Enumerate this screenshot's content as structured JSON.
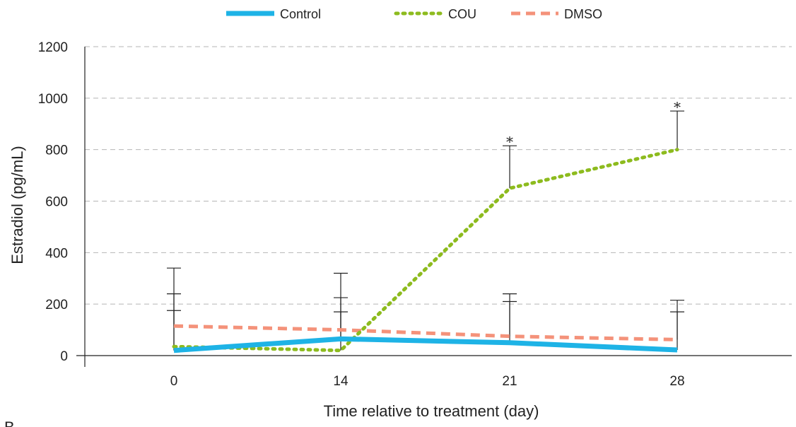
{
  "chart_data": {
    "type": "line",
    "categories": [
      "0",
      "14",
      "21",
      "28"
    ],
    "xlabel": "Time relative to treatment (day)",
    "ylabel": "Estradiol (pg/mL)",
    "ylim": [
      0,
      1200
    ],
    "yticks": [
      "0",
      "200",
      "400",
      "600",
      "800",
      "1000",
      "1200"
    ],
    "grid": "horizontal dashed",
    "legend_position": "top-center",
    "series": [
      {
        "name": "Control",
        "values": [
          20,
          65,
          50,
          22
        ],
        "error_upper": [
          175,
          170,
          210,
          170
        ],
        "color": "#1EB3E6",
        "style": "solid"
      },
      {
        "name": "COU",
        "values": [
          35,
          20,
          650,
          800
        ],
        "error_upper": [
          240,
          225,
          815,
          950
        ],
        "color": "#8DBB1E",
        "style": "dotted"
      },
      {
        "name": "DMSO",
        "values": [
          115,
          100,
          75,
          62
        ],
        "error_upper": [
          340,
          320,
          240,
          215
        ],
        "color": "#F4927A",
        "style": "dashed"
      }
    ],
    "annotations": [
      {
        "text": "*",
        "x": "21",
        "y": 850
      },
      {
        "text": "*",
        "x": "28",
        "y": 985
      }
    ],
    "panel_letter": "B"
  }
}
